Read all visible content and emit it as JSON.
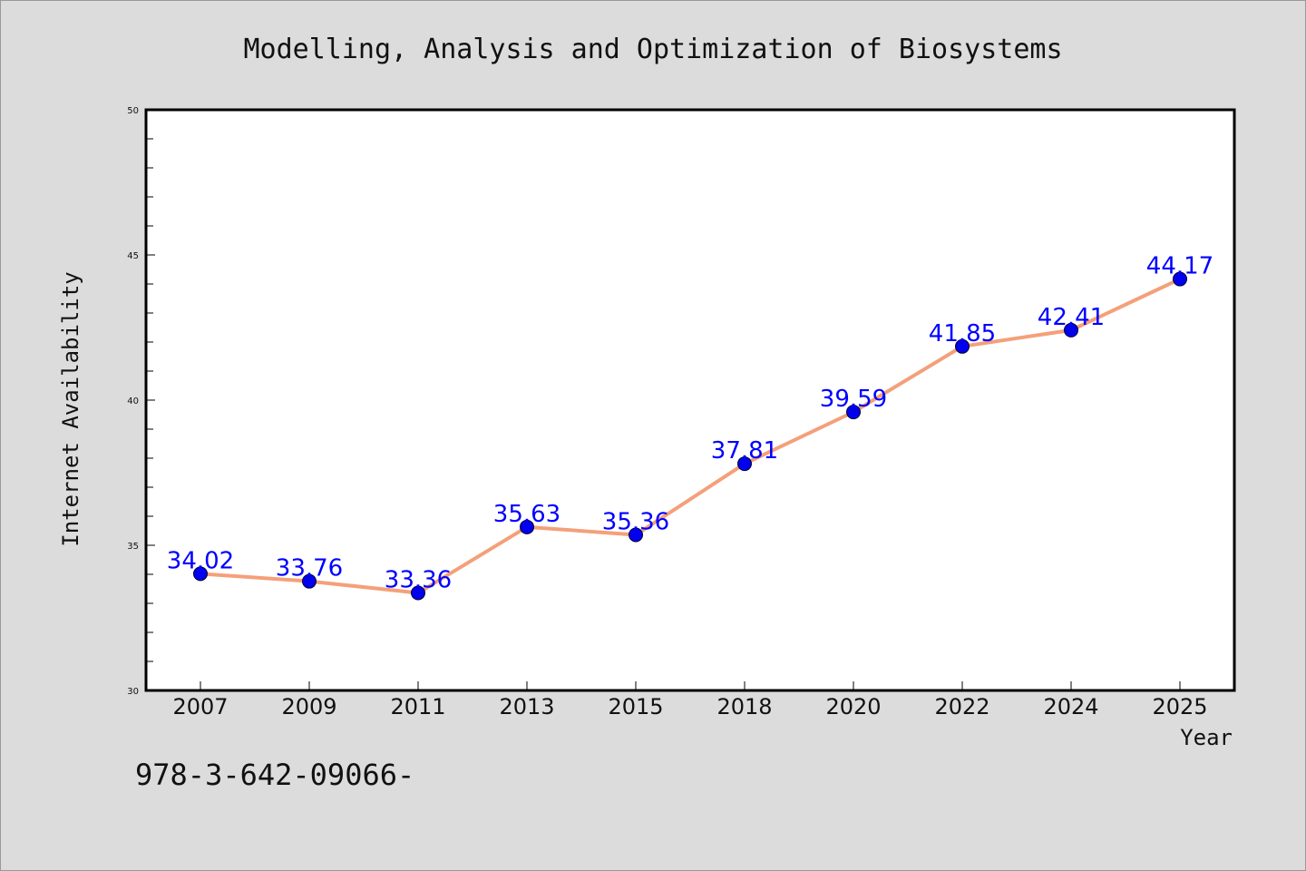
{
  "chart_data": {
    "type": "line",
    "title": "Modelling, Analysis and Optimization of Biosystems",
    "xlabel": "Year",
    "ylabel": "Internet Availability",
    "ylim": [
      30,
      50
    ],
    "yticks": [
      "30",
      "35",
      "40",
      "45",
      "50"
    ],
    "categories": [
      "2007",
      "2009",
      "2011",
      "2013",
      "2015",
      "2018",
      "2020",
      "2022",
      "2024",
      "2025"
    ],
    "series": [
      {
        "values": [
          34.02,
          33.76,
          33.36,
          35.63,
          35.36,
          37.81,
          39.59,
          41.85,
          42.41,
          44.17
        ],
        "labels": [
          "34.02",
          "33.76",
          "33.36",
          "35.63",
          "35.36",
          "37.81",
          "39.59",
          "41.85",
          "42.41",
          "44.17"
        ],
        "line_color": "#f4a07a",
        "marker_color": "#0000ee"
      }
    ],
    "grid": false,
    "legend": "none"
  },
  "footer": {
    "text": "978-3-642-09066-"
  }
}
